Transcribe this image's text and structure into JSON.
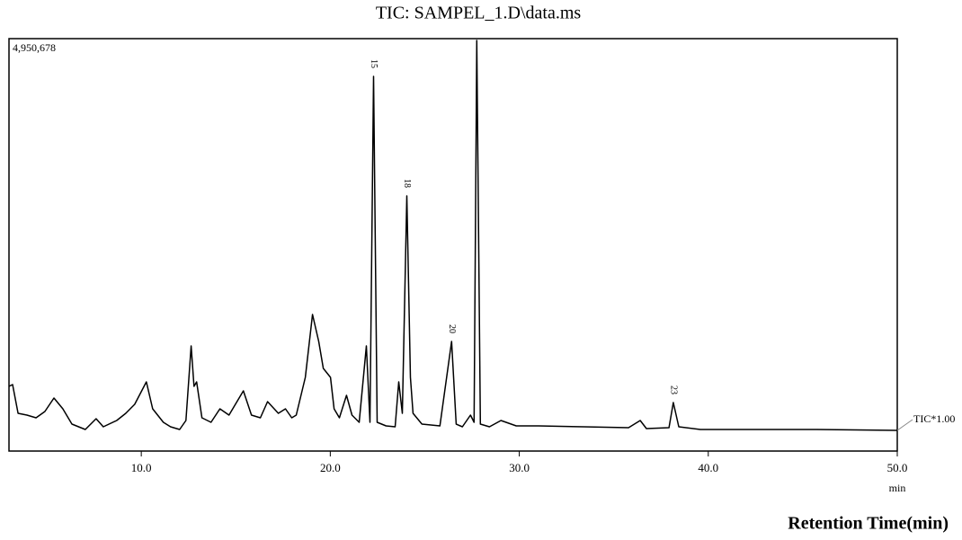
{
  "chart_data": {
    "type": "line",
    "title": "TIC: SAMPEL_1.D\\data.ms",
    "x_label": "Retention Time(min)",
    "x_unit": "min",
    "trace_label": "TIC*1.00",
    "xlim": [
      3.0,
      50.0
    ],
    "xticks": [
      {
        "value": 10,
        "label": "10.0"
      },
      {
        "value": 20,
        "label": "20.0"
      },
      {
        "value": 30,
        "label": "30.0"
      },
      {
        "value": 40,
        "label": "40.0"
      },
      {
        "value": 50,
        "label": "50.0"
      }
    ],
    "ylim": [
      0,
      4950678
    ],
    "yticks": [
      {
        "value": 4950678,
        "label": "4,950,678"
      }
    ],
    "series": [
      {
        "name": "TIC",
        "color": "#000000",
        "x": [
          3.0,
          3.19,
          3.48,
          3.95,
          4.43,
          4.9,
          5.38,
          5.85,
          6.33,
          7.04,
          7.61,
          7.99,
          8.7,
          9.18,
          9.65,
          10.27,
          10.6,
          11.17,
          11.55,
          12.03,
          12.36,
          12.64,
          12.79,
          12.93,
          13.21,
          13.69,
          14.16,
          14.64,
          15.4,
          15.83,
          16.3,
          16.68,
          17.25,
          17.63,
          17.96,
          18.2,
          18.68,
          19.06,
          19.39,
          19.63,
          20.01,
          20.2,
          20.48,
          20.86,
          21.15,
          21.53,
          21.91,
          22.1,
          22.29,
          22.48,
          22.95,
          23.43,
          23.62,
          23.81,
          24.05,
          24.24,
          24.38,
          24.85,
          25.8,
          26.42,
          26.66,
          26.99,
          27.42,
          27.61,
          27.75,
          27.94,
          28.42,
          29.03,
          29.84,
          31.03,
          33.4,
          35.78,
          36.4,
          36.73,
          37.92,
          38.15,
          38.44,
          39.58,
          42.9,
          45.76,
          50.0
        ],
        "values": [
          777000,
          798000,
          453000,
          431000,
          399000,
          475000,
          636000,
          507000,
          324000,
          259000,
          388000,
          291000,
          367000,
          453000,
          561000,
          831000,
          507000,
          345000,
          291000,
          259000,
          367000,
          1262000,
          777000,
          831000,
          399000,
          345000,
          507000,
          431000,
          723000,
          431000,
          399000,
          593000,
          453000,
          507000,
          399000,
          431000,
          884000,
          1639000,
          1316000,
          992000,
          884000,
          507000,
          399000,
          669000,
          431000,
          345000,
          1262000,
          345000,
          4498000,
          345000,
          302000,
          291000,
          831000,
          453000,
          3063000,
          884000,
          453000,
          324000,
          302000,
          1316000,
          324000,
          291000,
          431000,
          345000,
          4929000,
          324000,
          291000,
          367000,
          302000,
          302000,
          291000,
          280000,
          367000,
          270000,
          280000,
          582000,
          291000,
          259000,
          259000,
          259000,
          248000
        ]
      }
    ],
    "peak_labels": [
      {
        "x": 22.29,
        "label": "15"
      },
      {
        "x": 24.05,
        "label": "18"
      },
      {
        "x": 26.42,
        "label": "20"
      },
      {
        "x": 38.15,
        "label": "23"
      }
    ]
  }
}
